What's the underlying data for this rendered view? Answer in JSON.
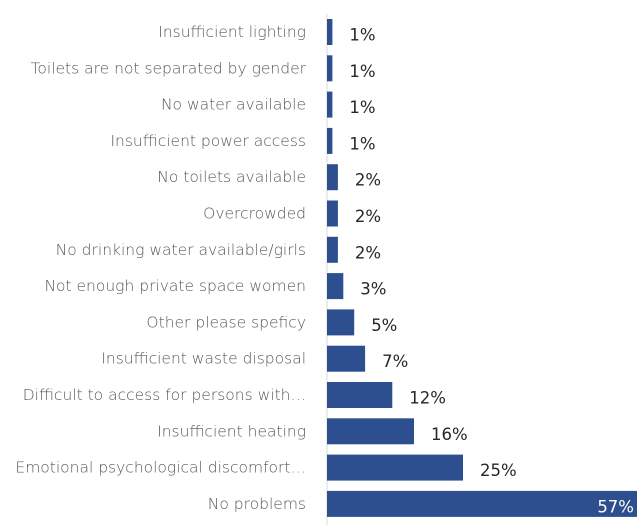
{
  "chart_data": {
    "type": "bar",
    "orientation": "horizontal",
    "title": "",
    "xlabel": "",
    "ylabel": "",
    "xlim": [
      0,
      57
    ],
    "grid": false,
    "legend": "none",
    "bar_color": "#2e4f8f",
    "value_suffix": "%",
    "categories": [
      "Insufficient lighting",
      "Toilets are not separated by gender",
      "No water available",
      "Insufficient power access",
      "No toilets available",
      "Overcrowded",
      "No drinking water available/girls",
      "Not enough private space women",
      "Other please speficy",
      "Insufficient waste disposal",
      "Difficult to access for persons with…",
      "Insufficient heating",
      "Emotional psychological discomfort…",
      "No problems"
    ],
    "values": [
      1,
      1,
      1,
      1,
      2,
      2,
      2,
      3,
      5,
      7,
      12,
      16,
      25,
      57
    ],
    "labels": [
      "1%",
      "1%",
      "1%",
      "1%",
      "2%",
      "2%",
      "2%",
      "3%",
      "5%",
      "7%",
      "12%",
      "16%",
      "25%",
      "57%"
    ]
  }
}
